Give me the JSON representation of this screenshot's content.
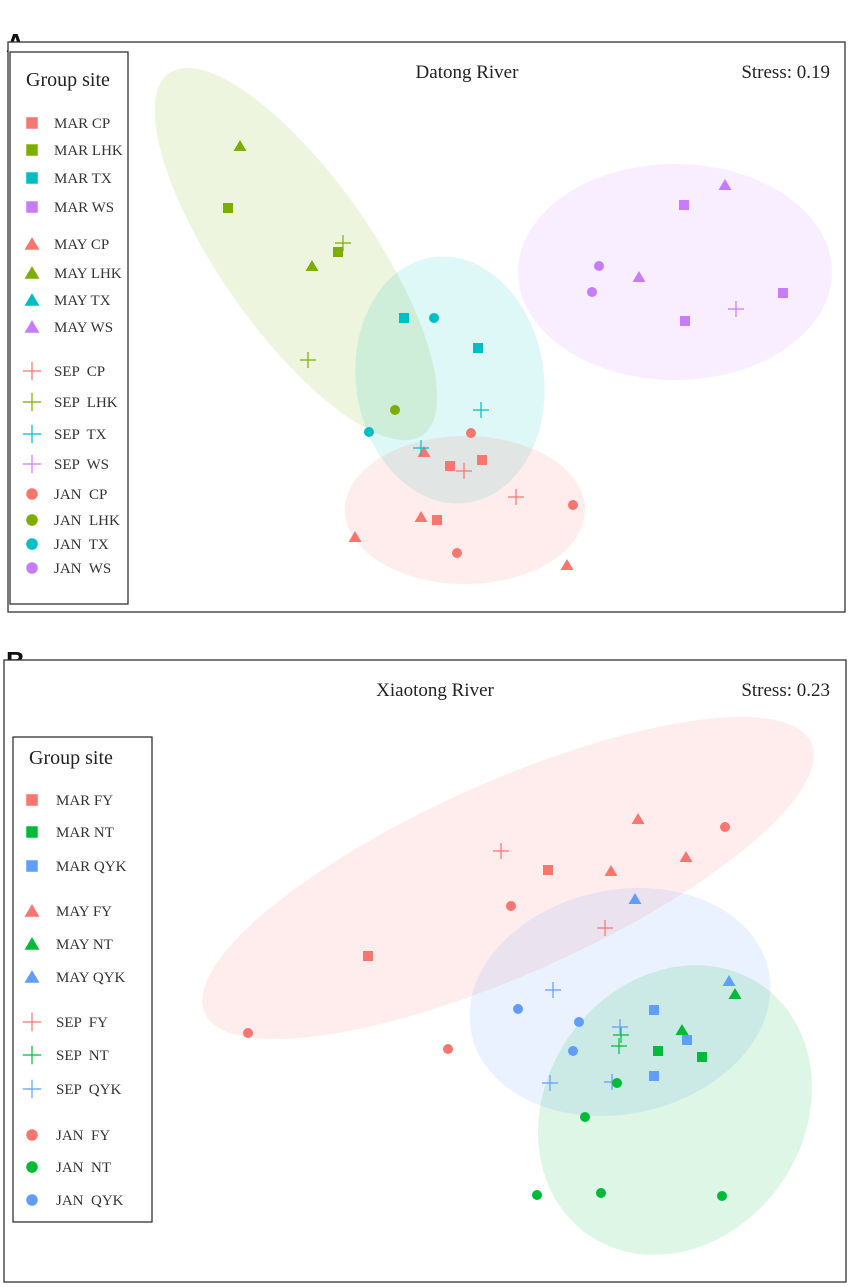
{
  "colors": {
    "CP": "#F8766D",
    "LHK": "#7CAE00",
    "TX": "#00BFC4",
    "WS": "#C77CFF",
    "FY": "#F8766D",
    "NT": "#00BA38",
    "QYK": "#619CFF"
  },
  "chart_data": [
    {
      "type": "scatter",
      "panel_label": "A",
      "title": "Datong River",
      "stress_label": "Stress: 0.19",
      "legend_title": "Group site",
      "legend_placement": "left",
      "xlabel": "",
      "ylabel": "",
      "xlim": [
        -2.085,
        2.1
      ],
      "ylim": [
        -1.41,
        1.44
      ],
      "grid": false,
      "sites": [
        "CP",
        "LHK",
        "TX",
        "WS"
      ],
      "legend": [
        {
          "label": "MAR CP",
          "month": "MAR",
          "site": "CP"
        },
        {
          "label": "MAR LHK",
          "month": "MAR",
          "site": "LHK"
        },
        {
          "label": "MAR TX",
          "month": "MAR",
          "site": "TX"
        },
        {
          "label": "MAR WS",
          "month": "MAR",
          "site": "WS"
        },
        {
          "label": "MAY CP",
          "month": "MAY",
          "site": "CP"
        },
        {
          "label": "MAY LHK",
          "month": "MAY",
          "site": "LHK"
        },
        {
          "label": "MAY TX",
          "month": "MAY",
          "site": "TX"
        },
        {
          "label": "MAY WS",
          "month": "MAY",
          "site": "WS"
        },
        {
          "label": "SEP  CP",
          "month": "SEP",
          "site": "CP"
        },
        {
          "label": "SEP  LHK",
          "month": "SEP",
          "site": "LHK"
        },
        {
          "label": "SEP  TX",
          "month": "SEP",
          "site": "TX"
        },
        {
          "label": "SEP  WS",
          "month": "SEP",
          "site": "WS"
        },
        {
          "label": "JAN  CP",
          "month": "JAN",
          "site": "CP"
        },
        {
          "label": "JAN  LHK",
          "month": "JAN",
          "site": "LHK"
        },
        {
          "label": "JAN  TX",
          "month": "JAN",
          "site": "TX"
        },
        {
          "label": "JAN  WS",
          "month": "JAN",
          "site": "WS"
        }
      ],
      "ellipses": [
        {
          "site": "LHK",
          "cx": -0.645,
          "cy": 0.38,
          "rx": 1.105,
          "ry": 0.38,
          "angle": 55
        },
        {
          "site": "TX",
          "cx": 0.125,
          "cy": -0.25,
          "rx": 0.47,
          "ry": 0.62,
          "angle": -8
        },
        {
          "site": "CP",
          "cx": 0.2,
          "cy": -0.9,
          "rx": 0.6,
          "ry": 0.37,
          "angle": 0
        },
        {
          "site": "WS",
          "cx": 1.25,
          "cy": 0.29,
          "rx": 0.785,
          "ry": 0.54,
          "angle": 0
        }
      ],
      "points": [
        {
          "month": "MAR",
          "site": "CP",
          "x": 0.125,
          "y": -0.68
        },
        {
          "month": "MAR",
          "site": "CP",
          "x": 0.285,
          "y": -0.65
        },
        {
          "month": "MAR",
          "site": "CP",
          "x": 0.06,
          "y": -0.95
        },
        {
          "month": "MAR",
          "site": "LHK",
          "x": -0.985,
          "y": 0.61
        },
        {
          "month": "MAR",
          "site": "LHK",
          "x": -0.435,
          "y": 0.39
        },
        {
          "month": "MAR",
          "site": "TX",
          "x": -0.105,
          "y": 0.06
        },
        {
          "month": "MAR",
          "site": "TX",
          "x": 0.265,
          "y": -0.09
        },
        {
          "month": "MAR",
          "site": "WS",
          "x": 1.295,
          "y": 0.625
        },
        {
          "month": "MAR",
          "site": "WS",
          "x": 1.3,
          "y": 0.045
        },
        {
          "month": "MAR",
          "site": "WS",
          "x": 1.79,
          "y": 0.185
        },
        {
          "month": "MAY",
          "site": "CP",
          "x": -0.005,
          "y": -0.61
        },
        {
          "month": "MAY",
          "site": "CP",
          "x": -0.02,
          "y": -0.935
        },
        {
          "month": "MAY",
          "site": "CP",
          "x": -0.35,
          "y": -1.035
        },
        {
          "month": "MAY",
          "site": "CP",
          "x": 0.71,
          "y": -1.175
        },
        {
          "month": "MAY",
          "site": "LHK",
          "x": -0.925,
          "y": 0.92
        },
        {
          "month": "MAY",
          "site": "LHK",
          "x": -0.565,
          "y": 0.32
        },
        {
          "month": "MAY",
          "site": "WS",
          "x": 1.5,
          "y": 0.725
        },
        {
          "month": "MAY",
          "site": "WS",
          "x": 1.07,
          "y": 0.265
        },
        {
          "month": "SEP",
          "site": "CP",
          "x": 0.195,
          "y": -0.705
        },
        {
          "month": "SEP",
          "site": "CP",
          "x": 0.455,
          "y": -0.835
        },
        {
          "month": "SEP",
          "site": "LHK",
          "x": -0.41,
          "y": 0.435
        },
        {
          "month": "SEP",
          "site": "LHK",
          "x": -0.585,
          "y": -0.15
        },
        {
          "month": "SEP",
          "site": "TX",
          "x": 0.28,
          "y": -0.4
        },
        {
          "month": "SEP",
          "site": "TX",
          "x": -0.02,
          "y": -0.59
        },
        {
          "month": "SEP",
          "site": "WS",
          "x": 1.555,
          "y": 0.105
        },
        {
          "month": "JAN",
          "site": "CP",
          "x": 0.23,
          "y": -0.515
        },
        {
          "month": "JAN",
          "site": "CP",
          "x": 0.74,
          "y": -0.875
        },
        {
          "month": "JAN",
          "site": "CP",
          "x": 0.16,
          "y": -1.115
        },
        {
          "month": "JAN",
          "site": "LHK",
          "x": -0.15,
          "y": -0.4
        },
        {
          "month": "JAN",
          "site": "TX",
          "x": 0.045,
          "y": 0.06
        },
        {
          "month": "JAN",
          "site": "TX",
          "x": -0.28,
          "y": -0.51
        },
        {
          "month": "JAN",
          "site": "WS",
          "x": 0.87,
          "y": 0.32
        },
        {
          "month": "JAN",
          "site": "WS",
          "x": 0.835,
          "y": 0.19
        }
      ]
    },
    {
      "type": "scatter",
      "panel_label": "B",
      "title": "Xiaotong River",
      "stress_label": "Stress: 0.23",
      "legend_title": "Group site",
      "legend_placement": "left",
      "xlabel": "",
      "ylabel": "",
      "xlim": [
        -2.105,
        2.105
      ],
      "ylim": [
        -1.56,
        1.55
      ],
      "grid": false,
      "sites": [
        "FY",
        "NT",
        "QYK"
      ],
      "legend": [
        {
          "label": "MAR FY",
          "month": "MAR",
          "site": "FY"
        },
        {
          "label": "MAR NT",
          "month": "MAR",
          "site": "NT"
        },
        {
          "label": "MAR QYK",
          "month": "MAR",
          "site": "QYK"
        },
        {
          "label": "MAY FY",
          "month": "MAY",
          "site": "FY"
        },
        {
          "label": "MAY NT",
          "month": "MAY",
          "site": "NT"
        },
        {
          "label": "MAY QYK",
          "month": "MAY",
          "site": "QYK"
        },
        {
          "label": "SEP  FY",
          "month": "SEP",
          "site": "FY"
        },
        {
          "label": "SEP  NT",
          "month": "SEP",
          "site": "NT"
        },
        {
          "label": "SEP  QYK",
          "month": "SEP",
          "site": "QYK"
        },
        {
          "label": "JAN  FY",
          "month": "JAN",
          "site": "FY"
        },
        {
          "label": "JAN  NT",
          "month": "JAN",
          "site": "NT"
        },
        {
          "label": "JAN  QYK",
          "month": "JAN",
          "site": "QYK"
        }
      ],
      "ellipses": [
        {
          "site": "FY",
          "cx": 0.415,
          "cy": 0.46,
          "rx": 1.66,
          "ry": 0.48,
          "angle": -24
        },
        {
          "site": "QYK",
          "cx": 0.975,
          "cy": -0.16,
          "rx": 0.76,
          "ry": 0.56,
          "angle": -12
        },
        {
          "site": "NT",
          "cx": 1.25,
          "cy": -0.7,
          "rx": 0.76,
          "ry": 0.645,
          "angle": -55
        }
      ],
      "points": [
        {
          "month": "MAR",
          "site": "FY",
          "x": 0.615,
          "y": 0.5
        },
        {
          "month": "MAR",
          "site": "FY",
          "x": -0.285,
          "y": 0.07
        },
        {
          "month": "MAR",
          "site": "NT",
          "x": 1.165,
          "y": -0.405
        },
        {
          "month": "MAR",
          "site": "NT",
          "x": 1.385,
          "y": -0.435
        },
        {
          "month": "MAR",
          "site": "QYK",
          "x": 1.145,
          "y": -0.2
        },
        {
          "month": "MAR",
          "site": "QYK",
          "x": 1.31,
          "y": -0.35
        },
        {
          "month": "MAR",
          "site": "QYK",
          "x": 1.145,
          "y": -0.53
        },
        {
          "month": "MAY",
          "site": "FY",
          "x": 1.065,
          "y": 0.755
        },
        {
          "month": "MAY",
          "site": "FY",
          "x": 1.305,
          "y": 0.565
        },
        {
          "month": "MAY",
          "site": "FY",
          "x": 0.93,
          "y": 0.495
        },
        {
          "month": "MAY",
          "site": "NT",
          "x": 1.285,
          "y": -0.3
        },
        {
          "month": "MAY",
          "site": "NT",
          "x": 1.55,
          "y": -0.12
        },
        {
          "month": "MAY",
          "site": "QYK",
          "x": 1.05,
          "y": 0.355
        },
        {
          "month": "MAY",
          "site": "QYK",
          "x": 1.52,
          "y": -0.055
        },
        {
          "month": "SEP",
          "site": "FY",
          "x": 0.38,
          "y": 0.595
        },
        {
          "month": "SEP",
          "site": "FY",
          "x": 0.9,
          "y": 0.21
        },
        {
          "month": "SEP",
          "site": "NT",
          "x": 0.98,
          "y": -0.325
        },
        {
          "month": "SEP",
          "site": "NT",
          "x": 0.97,
          "y": -0.38
        },
        {
          "month": "SEP",
          "site": "QYK",
          "x": 0.64,
          "y": -0.1
        },
        {
          "month": "SEP",
          "site": "QYK",
          "x": 0.625,
          "y": -0.565
        },
        {
          "month": "SEP",
          "site": "QYK",
          "x": 0.935,
          "y": -0.56
        },
        {
          "month": "SEP",
          "site": "QYK",
          "x": 0.975,
          "y": -0.285
        },
        {
          "month": "JAN",
          "site": "FY",
          "x": 1.5,
          "y": 0.715
        },
        {
          "month": "JAN",
          "site": "FY",
          "x": 0.43,
          "y": 0.32
        },
        {
          "month": "JAN",
          "site": "FY",
          "x": -0.885,
          "y": -0.315
        },
        {
          "month": "JAN",
          "site": "FY",
          "x": 0.115,
          "y": -0.395
        },
        {
          "month": "JAN",
          "site": "NT",
          "x": 0.96,
          "y": -0.565
        },
        {
          "month": "JAN",
          "site": "NT",
          "x": 0.8,
          "y": -0.735
        },
        {
          "month": "JAN",
          "site": "NT",
          "x": 0.56,
          "y": -1.125
        },
        {
          "month": "JAN",
          "site": "NT",
          "x": 0.88,
          "y": -1.115
        },
        {
          "month": "JAN",
          "site": "NT",
          "x": 1.485,
          "y": -1.13
        },
        {
          "month": "JAN",
          "site": "QYK",
          "x": 0.465,
          "y": -0.195
        },
        {
          "month": "JAN",
          "site": "QYK",
          "x": 0.77,
          "y": -0.26
        },
        {
          "month": "JAN",
          "site": "QYK",
          "x": 0.74,
          "y": -0.405
        }
      ]
    }
  ]
}
